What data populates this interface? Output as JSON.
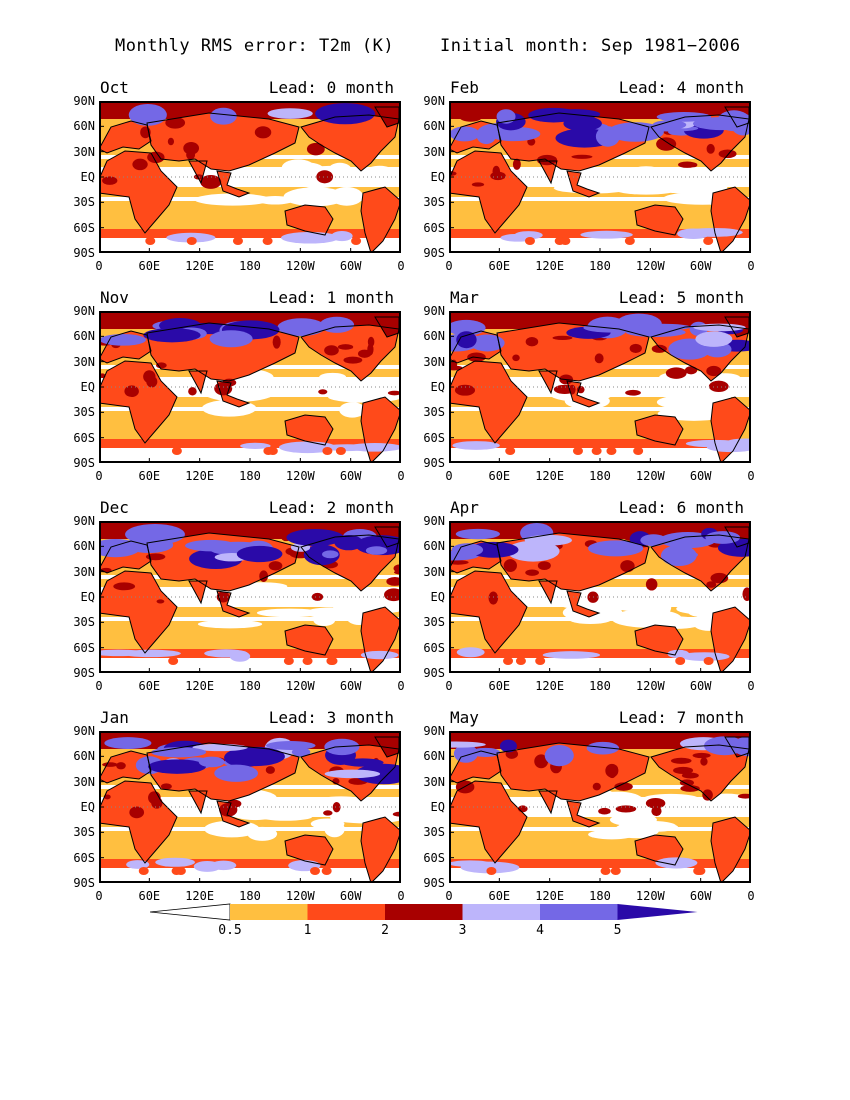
{
  "title_left": "Monthly RMS error: T2m (K)",
  "title_right": "Initial month: Sep 1981−2006",
  "lat_labels": [
    "90N",
    "60N",
    "30N",
    "EQ",
    "30S",
    "60S",
    "90S"
  ],
  "lon_labels": [
    "0",
    "60E",
    "120E",
    "180",
    "120W",
    "60W",
    "0"
  ],
  "panels": [
    {
      "month": "Oct",
      "lead": "Lead: 0 month",
      "cold": 0.15,
      "warm": 0.2
    },
    {
      "month": "Feb",
      "lead": "Lead: 4 month",
      "cold": 0.85,
      "warm": 0.5
    },
    {
      "month": "Nov",
      "lead": "Lead: 1 month",
      "cold": 0.45,
      "warm": 0.45
    },
    {
      "month": "Mar",
      "lead": "Lead: 5 month",
      "cold": 0.75,
      "warm": 0.55
    },
    {
      "month": "Dec",
      "lead": "Lead: 2 month",
      "cold": 0.7,
      "warm": 0.55
    },
    {
      "month": "Apr",
      "lead": "Lead: 6 month",
      "cold": 0.6,
      "warm": 0.55
    },
    {
      "month": "Jan",
      "lead": "Lead: 3 month",
      "cold": 0.85,
      "warm": 0.55
    },
    {
      "month": "May",
      "lead": "Lead: 7 month",
      "cold": 0.35,
      "warm": 0.7
    }
  ],
  "colorbar": {
    "labels": [
      "0.5",
      "1",
      "2",
      "3",
      "4",
      "5"
    ],
    "colors": [
      "#ffffff",
      "#ffbf40",
      "#ff4a1a",
      "#a80000",
      "#bdb5fb",
      "#7468e6",
      "#2a0aa8"
    ]
  }
}
